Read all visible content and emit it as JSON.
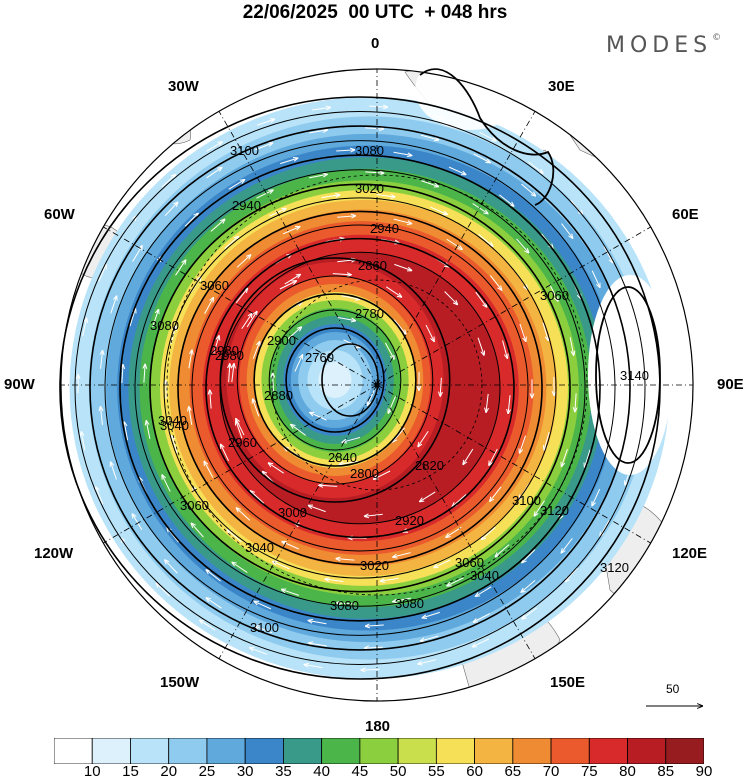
{
  "title": "22/06/2025  00 UTC  + 048 hrs",
  "brand": "MODES",
  "brand_mark": "©",
  "longitudes": {
    "top": "0",
    "top_right": "30E",
    "right_upper": "60E",
    "right": "90E",
    "right_lower": "120E",
    "bottom_right": "150E",
    "bottom": "180",
    "bottom_left": "150W",
    "left_lower": "120W",
    "left": "90W",
    "left_upper": "60W",
    "top_left": "30W"
  },
  "contour_labels": [
    "3100",
    "3080",
    "3020",
    "2940",
    "2860",
    "2780",
    "2760",
    "3080",
    "3060",
    "3040",
    "2980",
    "2900",
    "2880",
    "2840",
    "2800",
    "2820",
    "2920",
    "2960",
    "3000",
    "3040",
    "3060",
    "3080",
    "3100",
    "3120",
    "3120",
    "3140",
    "3100",
    "3060",
    "3040",
    "3080",
    "3020",
    "2940",
    "2980",
    "3040",
    "3060"
  ],
  "legend_colors": [
    "#ffffff",
    "#dcf1fc",
    "#b8e3f8",
    "#8fcbee",
    "#5fa9dd",
    "#3b86c8",
    "#3a9a8a",
    "#4cb54a",
    "#8ccf3e",
    "#c9e04c",
    "#f6e058",
    "#f3b441",
    "#ef8b32",
    "#ea5a2c",
    "#d82a2a",
    "#b81d24",
    "#961c20"
  ],
  "legend_ticks": [
    "10",
    "15",
    "20",
    "25",
    "30",
    "35",
    "40",
    "45",
    "50",
    "55",
    "60",
    "65",
    "70",
    "75",
    "80",
    "85",
    "90"
  ],
  "vector_scale_label": "50",
  "icons": {
    "scale_arrow": "arrow-right-icon",
    "pole": "pole-dot-icon"
  }
}
